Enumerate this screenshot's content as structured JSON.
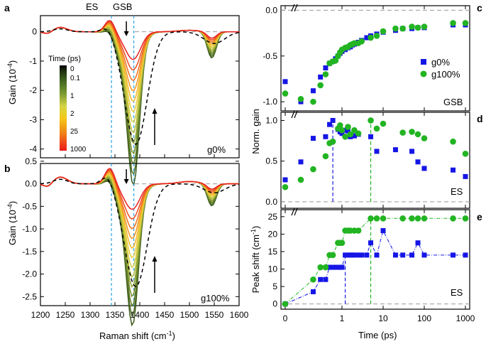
{
  "colors": {
    "frame": "#000000",
    "dash_zero": "#9a9a9a",
    "es_line": "#2aa3e6",
    "blue_marker": "#1515e6",
    "green_marker": "#22b422",
    "blue_drop": "#1a1ae0",
    "green_drop": "#22b422",
    "black_dash": "#000000",
    "colorbar": [
      "#000000",
      "#1c2c10",
      "#3c5e1e",
      "#6f8f2a",
      "#c8d040",
      "#f4d018",
      "#f0a010",
      "#ee6818",
      "#ee2020"
    ]
  },
  "panels": {
    "a": "a",
    "b": "b",
    "c": "c",
    "d": "d",
    "e": "e"
  },
  "top_labels": {
    "es": "ES",
    "gsb": "GSB"
  },
  "raman": {
    "xlabel": "Raman shift (cm",
    "xlabel_sup": "-1",
    "xlabel_close": ")",
    "xticks": [
      1200,
      1250,
      1300,
      1350,
      1400,
      1450,
      1500,
      1550,
      1600
    ],
    "xlim": [
      1200,
      1600
    ],
    "es_position": 1343,
    "gsb_position": 1388,
    "colorbar": {
      "title": "Time (ps)",
      "ticks": [
        "0",
        "0.1",
        "1",
        "2",
        "25",
        "1000"
      ]
    }
  },
  "chart_data": [
    {
      "panel": "a",
      "type": "line",
      "ylabel": "Gain (10",
      "ylabel_sup": "-4",
      "ylabel_close": ")",
      "ylim": [
        -4.3,
        0.55
      ],
      "yticks": [
        "0",
        "-1",
        "-2",
        "-3",
        "-4"
      ],
      "ytick_values": [
        0,
        -1,
        -2,
        -3,
        -4
      ],
      "label": "g0%",
      "depth_min": -4.05,
      "dip_center": 1388,
      "peak_height": 0.45,
      "arrow_down_label": "",
      "series_count": 13
    },
    {
      "panel": "b",
      "type": "line",
      "ylabel": "Gain (10",
      "ylabel_sup": "-4",
      "ylabel_close": ")",
      "ylim": [
        -2.7,
        0.45
      ],
      "yticks": [
        "0.5",
        "0.0",
        "-0.5",
        "-1.0",
        "-1.5",
        "-2.0",
        "-2.5"
      ],
      "ytick_values": [
        0.5,
        0.0,
        -0.5,
        -1.0,
        -1.5,
        -2.0,
        -2.5
      ],
      "label": "g100%",
      "depth_min": -2.4,
      "dip_center": 1386,
      "peak_height": 0.38,
      "series_count": 13
    },
    {
      "panel": "c",
      "type": "scatter",
      "ylabel": "",
      "ylim": [
        -1.1,
        0.05
      ],
      "yticks": [
        "0.0",
        "-0.5",
        "-1.0"
      ],
      "ytick_values": [
        0.0,
        -0.5,
        -1.0
      ],
      "label": "GSB",
      "legend": [
        {
          "name": "g0%",
          "marker": "square"
        },
        {
          "name": "g100%",
          "marker": "circle"
        }
      ],
      "series": [
        {
          "name": "g0%",
          "x": [
            0.0,
            0.1,
            0.2,
            0.3,
            0.4,
            0.5,
            0.6,
            0.7,
            0.8,
            0.9,
            1.0,
            1.2,
            1.4,
            1.6,
            1.8,
            2.0,
            2.5,
            3.0,
            4.0,
            5.0,
            7.0,
            10.0,
            20.0,
            30.0,
            50.0,
            70.0,
            100.0,
            500.0,
            1000.0
          ],
          "y": [
            -0.78,
            -1.0,
            -0.88,
            -0.73,
            -0.63,
            -0.58,
            -0.56,
            -0.53,
            -0.5,
            -0.47,
            -0.45,
            -0.43,
            -0.41,
            -0.4,
            -0.38,
            -0.37,
            -0.35,
            -0.33,
            -0.3,
            -0.28,
            -0.26,
            -0.24,
            -0.22,
            -0.2,
            -0.2,
            -0.19,
            -0.19,
            -0.16,
            -0.16
          ]
        },
        {
          "name": "g100%",
          "x": [
            0.0,
            0.1,
            0.2,
            0.3,
            0.4,
            0.5,
            0.6,
            0.7,
            0.8,
            0.9,
            1.0,
            1.2,
            1.4,
            1.6,
            1.8,
            2.0,
            2.5,
            3.0,
            5.0,
            7.0,
            10.0,
            20.0,
            30.0,
            50.0,
            70.0,
            100.0,
            500.0,
            1000.0
          ],
          "y": [
            -0.91,
            -0.97,
            -1.0,
            -0.82,
            -0.7,
            -0.58,
            -0.56,
            -0.55,
            -0.5,
            -0.46,
            -0.43,
            -0.41,
            -0.4,
            -0.38,
            -0.37,
            -0.36,
            -0.36,
            -0.34,
            -0.3,
            -0.28,
            -0.23,
            -0.2,
            -0.2,
            -0.18,
            -0.19,
            -0.18,
            -0.14,
            -0.14
          ]
        }
      ]
    },
    {
      "panel": "d",
      "type": "scatter",
      "ylabel": "Norm. gain",
      "ylim": [
        -0.08,
        1.1
      ],
      "yticks": [
        "1.0",
        "0.5",
        "0.0"
      ],
      "ytick_values": [
        1.0,
        0.5,
        0.0
      ],
      "label": "ES",
      "series": [
        {
          "name": "g0%",
          "x": [
            0.0,
            0.1,
            0.2,
            0.4,
            0.5,
            0.6,
            0.8,
            0.9,
            1.0,
            1.2,
            1.4,
            1.6,
            2.0,
            2.5,
            5.0,
            7.0,
            20.0,
            50.0,
            70.0,
            100.0,
            500.0,
            1000.0
          ],
          "y": [
            0.27,
            0.49,
            0.78,
            0.8,
            0.95,
            1.0,
            0.89,
            0.86,
            0.84,
            0.88,
            0.87,
            0.8,
            0.81,
            0.83,
            0.8,
            0.62,
            0.64,
            0.62,
            0.49,
            0.41,
            0.39,
            0.31
          ]
        },
        {
          "name": "g100%",
          "x": [
            0.0,
            0.1,
            0.2,
            0.4,
            0.5,
            0.6,
            0.8,
            0.9,
            1.0,
            1.2,
            1.4,
            1.6,
            2.0,
            2.5,
            5.0,
            7.0,
            10.0,
            30.0,
            50.0,
            70.0,
            100.0,
            500.0,
            1000.0
          ],
          "y": [
            0.18,
            0.27,
            0.4,
            0.56,
            0.72,
            0.74,
            0.9,
            0.94,
            0.88,
            0.8,
            0.92,
            0.83,
            0.88,
            0.84,
            1.0,
            0.9,
            0.96,
            0.85,
            0.86,
            0.83,
            0.78,
            0.74,
            0.59
          ]
        }
      ],
      "marker_lines": [
        0.6,
        5.0
      ]
    },
    {
      "panel": "e",
      "type": "scatter",
      "ylabel": "Peak shift (cm",
      "ylabel_sup": "-1",
      "ylabel_close": ")",
      "ylim": [
        -1.5,
        27
      ],
      "yticks": [
        "25",
        "20",
        "15",
        "10",
        "5",
        "0"
      ],
      "ytick_values": [
        25,
        20,
        15,
        10,
        5,
        0
      ],
      "label": "ES",
      "xlabel": "Time (ps)",
      "xticks": [
        "0",
        "1",
        "10",
        "100",
        "1000"
      ],
      "series": [
        {
          "name": "g0%",
          "x": [
            0.0,
            0.2,
            0.3,
            0.4,
            0.5,
            0.6,
            0.7,
            0.8,
            0.9,
            1.0,
            1.2,
            1.4,
            1.6,
            1.8,
            2.0,
            2.5,
            3.0,
            4.0,
            5.0,
            7.0,
            10.0,
            20.0,
            30.0,
            50.0,
            70.0,
            100.0,
            500.0,
            1000.0
          ],
          "y": [
            0,
            3.5,
            7,
            7,
            10.5,
            10.5,
            10.5,
            10.5,
            10.5,
            10.5,
            14,
            14,
            14,
            14,
            14,
            14,
            14,
            14,
            17.5,
            14,
            21,
            14,
            14,
            14,
            17.5,
            14,
            14,
            14
          ]
        },
        {
          "name": "g100%",
          "x": [
            0.0,
            0.2,
            0.3,
            0.4,
            0.5,
            0.6,
            0.8,
            0.9,
            1.0,
            1.2,
            1.4,
            1.6,
            2.0,
            2.5,
            5.0,
            7.0,
            10.0,
            30.0,
            50.0,
            70.0,
            100.0,
            500.0,
            1000.0
          ],
          "y": [
            0,
            7,
            10.5,
            10.5,
            14,
            14,
            17.5,
            17.5,
            17.5,
            21,
            21,
            21,
            21,
            21,
            24.5,
            24.5,
            24.5,
            24.5,
            24.5,
            24.5,
            24.5,
            24.5,
            24.5
          ]
        }
      ],
      "marker_lines": [
        1.2,
        5.0
      ]
    }
  ]
}
